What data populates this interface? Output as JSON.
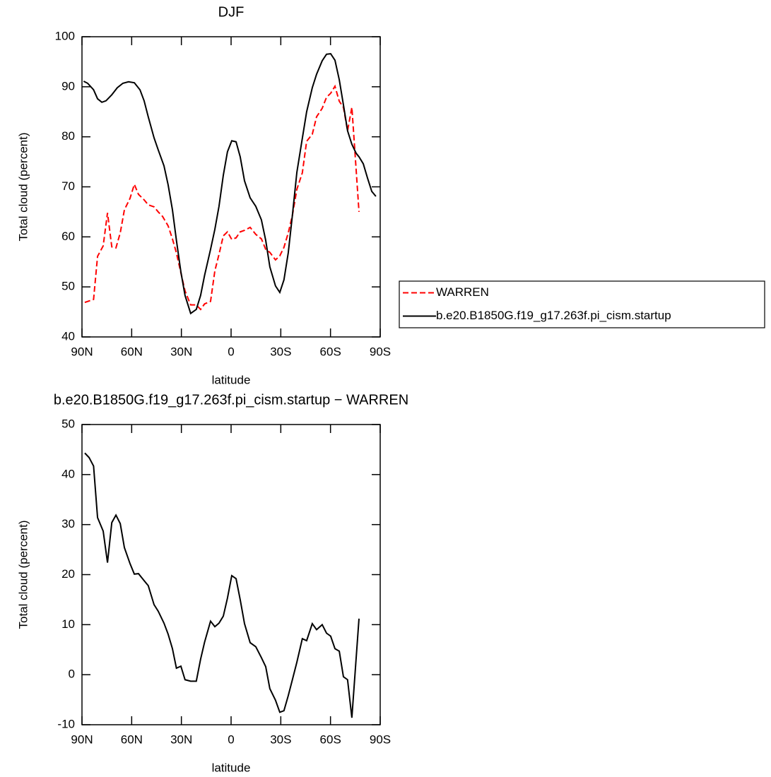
{
  "chart_data": [
    {
      "type": "line",
      "title": "DJF",
      "x_label": "latitude",
      "y_label": "Total cloud (percent)",
      "xlim": [
        90,
        -90
      ],
      "xticks": [
        {
          "value": 90,
          "label": "90N"
        },
        {
          "value": 60,
          "label": "60N"
        },
        {
          "value": 30,
          "label": "30N"
        },
        0,
        {
          "value": -30,
          "label": "30S"
        },
        {
          "value": -60,
          "label": "60S"
        },
        {
          "value": -90,
          "label": "90S"
        }
      ],
      "ylim": [
        40,
        100
      ],
      "yticks": [
        40,
        50,
        60,
        70,
        80,
        90,
        100
      ],
      "legend": "right",
      "series": [
        {
          "name": "WARREN",
          "color": "#ff0000",
          "dash": true,
          "x": [
            88.3,
            83,
            80.6,
            77.2,
            74.6,
            72,
            69.5,
            66.9,
            64.4,
            61,
            58.4,
            55.9,
            52.5,
            50,
            46.5,
            44,
            41.4,
            38,
            35.4,
            33,
            30.3,
            27.8,
            24.4,
            21,
            18.4,
            16,
            12.4,
            9.8,
            7.3,
            4.7,
            2.2,
            -0.4,
            -3,
            -5.5,
            -8.1,
            -11.5,
            -14.9,
            -18.3,
            -20.9,
            -23.4,
            -26.8,
            -29.4,
            -31.9,
            -34.5,
            -37,
            -39.7,
            -43,
            -45.6,
            -49,
            -51.6,
            -55,
            -57.6,
            -60.1,
            -62.7,
            -65.3,
            -67.8,
            -70.3,
            -72.9,
            -74.6,
            -77.2
          ],
          "values": [
            46.9,
            47.5,
            56.1,
            58.2,
            64.8,
            58,
            57.8,
            60.8,
            65.4,
            67.7,
            70.5,
            68.5,
            67.4,
            66.4,
            66,
            65,
            64.1,
            62.2,
            59.6,
            56.8,
            52.8,
            49.2,
            46.4,
            46.4,
            45.5,
            46.6,
            47.1,
            53.2,
            56.5,
            60.2,
            61,
            59.5,
            59.8,
            61,
            61.3,
            61.9,
            60.5,
            59.6,
            57.5,
            56.9,
            55.4,
            56.2,
            57.9,
            60.8,
            64.3,
            69.5,
            72.8,
            79.1,
            80.5,
            84,
            85.7,
            87.9,
            88.7,
            90.1,
            87.1,
            85.9,
            81.2,
            85.9,
            77.7,
            65
          ]
        },
        {
          "name": "b.e20.B1850G.f19_g17.263f.pi_cism.startup",
          "color": "#000000",
          "dash": false,
          "x": [
            89,
            86.6,
            83,
            80.6,
            78,
            75.5,
            72,
            68.7,
            65.3,
            61.9,
            58.4,
            55,
            52.5,
            50,
            46.5,
            44,
            40.5,
            38,
            35.4,
            33,
            30.3,
            27.8,
            24.4,
            21,
            18.4,
            16,
            12.4,
            9.8,
            7.3,
            4.7,
            2.2,
            -0.4,
            -3,
            -5.5,
            -8.1,
            -11.5,
            -14.9,
            -18.3,
            -20.9,
            -23.4,
            -26.8,
            -29.4,
            -31.9,
            -34.5,
            -37,
            -39.7,
            -43,
            -45.6,
            -49,
            -51.6,
            -55,
            -57.6,
            -60.1,
            -62.7,
            -65.3,
            -67.8,
            -70.3,
            -72.9,
            -75.5,
            -77.2,
            -79.8,
            -82.3,
            -84.9,
            -87.4
          ],
          "values": [
            91.1,
            90.7,
            89.4,
            87.6,
            86.9,
            87.2,
            88.4,
            89.8,
            90.7,
            91,
            90.8,
            89.4,
            87.2,
            84,
            79.8,
            77.4,
            74.2,
            70.4,
            65.4,
            59.3,
            53,
            48.3,
            44.7,
            45.5,
            48.3,
            52.3,
            57.5,
            61.5,
            66.1,
            72.3,
            77,
            79.2,
            79,
            76,
            71.2,
            67.8,
            66.1,
            63.4,
            59.3,
            54,
            50.2,
            48.9,
            51.4,
            56.8,
            64.3,
            72.9,
            79.7,
            85,
            89.8,
            92.5,
            95.2,
            96.5,
            96.6,
            95.3,
            91.4,
            86.4,
            81.2,
            78.5,
            76.7,
            76,
            74.6,
            71.8,
            69.1,
            68.1
          ]
        }
      ]
    },
    {
      "type": "line",
      "title": "b.e20.B1850G.f19_g17.263f.pi_cism.startup − WARREN",
      "x_label": "latitude",
      "y_label": "Total cloud (percent)",
      "xlim": [
        90,
        -90
      ],
      "xticks": [
        {
          "value": 90,
          "label": "90N"
        },
        {
          "value": 60,
          "label": "60N"
        },
        {
          "value": 30,
          "label": "30N"
        },
        0,
        {
          "value": -30,
          "label": "30S"
        },
        {
          "value": -60,
          "label": "60S"
        },
        {
          "value": -90,
          "label": "90S"
        }
      ],
      "ylim": [
        -10,
        50
      ],
      "yticks": [
        -10,
        0,
        10,
        20,
        30,
        40,
        50
      ],
      "series": [
        {
          "color": "#000000",
          "dash": false,
          "x": [
            88.3,
            85.7,
            83,
            80.6,
            77.2,
            74.6,
            72,
            69.5,
            66.9,
            64.4,
            61,
            58.4,
            55.9,
            52.5,
            50,
            46.5,
            44,
            40.5,
            38,
            35.4,
            33,
            30.3,
            27.8,
            24.4,
            21,
            18.4,
            16,
            12.4,
            9.8,
            7.3,
            4.7,
            2.2,
            -0.4,
            -3,
            -5.5,
            -8.1,
            -11.5,
            -14.9,
            -18.3,
            -20.9,
            -23.4,
            -26.8,
            -29.4,
            -31.9,
            -34.5,
            -37,
            -39.7,
            -43,
            -45.6,
            -49,
            -51.6,
            -55,
            -57.6,
            -60.1,
            -62.7,
            -65.3,
            -67.8,
            -70.3,
            -72.9,
            -77.2
          ],
          "values": [
            44.3,
            43.4,
            41.7,
            31.4,
            28.7,
            22.4,
            30.4,
            31.9,
            30.2,
            25.4,
            22.2,
            20.1,
            20.2,
            18.8,
            17.8,
            14,
            12.7,
            10.3,
            8.1,
            5.2,
            1.3,
            1.7,
            -1,
            -1.3,
            -1.3,
            3.1,
            6.5,
            10.7,
            9.6,
            10.3,
            11.7,
            15.3,
            19.8,
            19.2,
            15,
            10.2,
            6.4,
            5.6,
            3.4,
            1.6,
            -2.8,
            -5.1,
            -7.5,
            -7.2,
            -4.2,
            -1,
            2.5,
            7.2,
            6.8,
            10.2,
            9,
            10,
            8.3,
            7.7,
            5.2,
            4.7,
            -0.4,
            -1,
            -8.6,
            11.2
          ]
        }
      ]
    }
  ]
}
